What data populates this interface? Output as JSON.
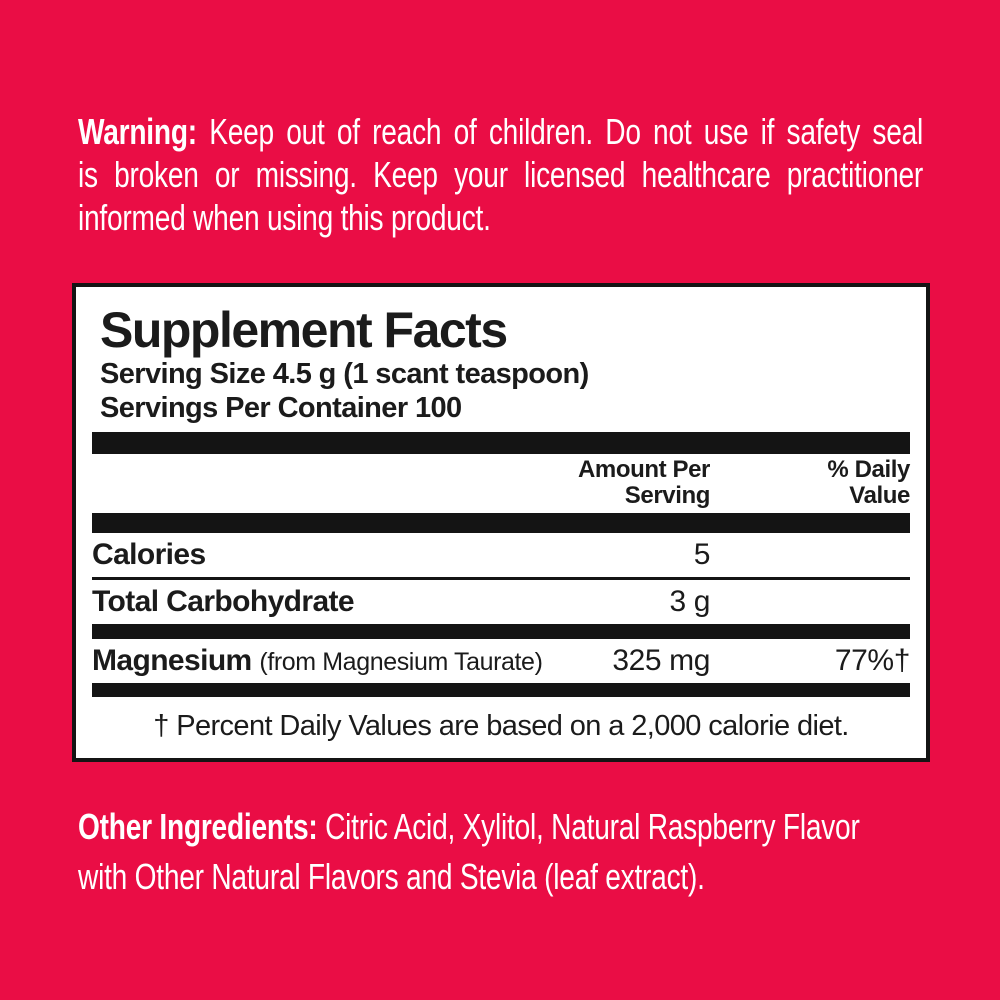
{
  "colors": {
    "background": "#ea0d45",
    "panel_background": "#ffffff",
    "panel_border": "#141414",
    "light_text": "#ffffff",
    "dark_text": "#1b1b1b"
  },
  "warning": {
    "label": "Warning:",
    "line1": "Keep out of reach of children. Do not use if safety seal",
    "line2": "is broken or missing. Keep your licensed healthcare practitioner",
    "line3": "informed when using this product."
  },
  "supplement_facts": {
    "title": "Supplement Facts",
    "serving_size": "Serving Size 4.5 g (1 scant teaspoon)",
    "servings_per_container": "Servings Per Container 100",
    "columns": {
      "amount_header": "Amount Per\nServing",
      "dv_header": "% Daily\nValue"
    },
    "rows": [
      {
        "name": "Calories",
        "detail": "",
        "amount": "5",
        "dv": ""
      },
      {
        "name": "Total Carbohydrate",
        "detail": "",
        "amount": "3 g",
        "dv": ""
      },
      {
        "name": "Magnesium",
        "detail": "(from Magnesium Taurate)",
        "amount": "325 mg",
        "dv": "77%†"
      }
    ],
    "footnote": "† Percent Daily Values are based on a 2,000 calorie diet."
  },
  "other_ingredients": {
    "label": "Other Ingredients:",
    "line1_rest": "Citric Acid, Xylitol, Natural Raspberry Flavor",
    "line2": "with Other Natural Flavors and Stevia (leaf extract)."
  }
}
